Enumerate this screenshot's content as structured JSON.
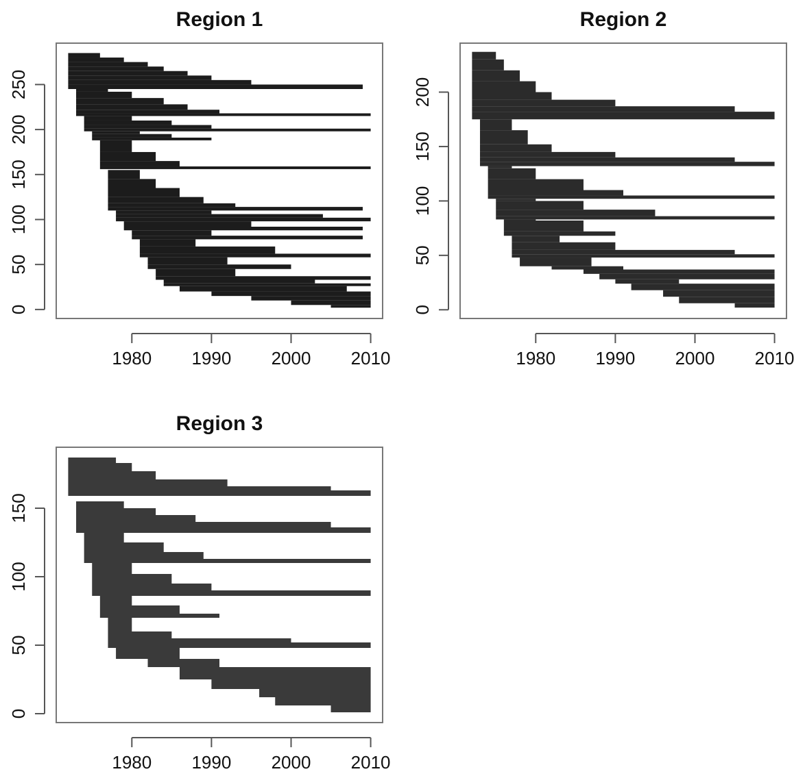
{
  "chart_data": [
    {
      "type": "block",
      "title": "Region 1",
      "color": "#1c1c1c",
      "xlim": [
        1970.5,
        2011.5
      ],
      "ylim": [
        -10,
        296
      ],
      "xticks": [
        1980,
        1990,
        2000,
        2010
      ],
      "yticks": [
        0,
        50,
        100,
        150,
        200,
        250
      ],
      "blocks": [
        {
          "y0": 245,
          "y1": 250,
          "start": 1972,
          "end": 2009
        },
        {
          "y0": 250,
          "y1": 255,
          "start": 1972,
          "end": 1995
        },
        {
          "y0": 255,
          "y1": 260,
          "start": 1972,
          "end": 1990
        },
        {
          "y0": 260,
          "y1": 265,
          "start": 1972,
          "end": 1987
        },
        {
          "y0": 265,
          "y1": 270,
          "start": 1972,
          "end": 1984
        },
        {
          "y0": 270,
          "y1": 275,
          "start": 1972,
          "end": 1982
        },
        {
          "y0": 275,
          "y1": 280,
          "start": 1972,
          "end": 1979
        },
        {
          "y0": 280,
          "y1": 285,
          "start": 1972,
          "end": 1976
        },
        {
          "y0": 215,
          "y1": 218,
          "start": 1973,
          "end": 2010
        },
        {
          "y0": 218,
          "y1": 222,
          "start": 1973,
          "end": 1991
        },
        {
          "y0": 222,
          "y1": 228,
          "start": 1973,
          "end": 1987
        },
        {
          "y0": 228,
          "y1": 235,
          "start": 1973,
          "end": 1984
        },
        {
          "y0": 235,
          "y1": 242,
          "start": 1973,
          "end": 1980
        },
        {
          "y0": 242,
          "y1": 245,
          "start": 1973,
          "end": 1977
        },
        {
          "y0": 198,
          "y1": 201,
          "start": 1974,
          "end": 2010
        },
        {
          "y0": 201,
          "y1": 205,
          "start": 1974,
          "end": 1990
        },
        {
          "y0": 205,
          "y1": 210,
          "start": 1974,
          "end": 1985
        },
        {
          "y0": 210,
          "y1": 215,
          "start": 1974,
          "end": 1980
        },
        {
          "y0": 188,
          "y1": 191,
          "start": 1975,
          "end": 1990
        },
        {
          "y0": 191,
          "y1": 195,
          "start": 1975,
          "end": 1985
        },
        {
          "y0": 195,
          "y1": 198,
          "start": 1975,
          "end": 1981
        },
        {
          "y0": 156,
          "y1": 159,
          "start": 1976,
          "end": 2010
        },
        {
          "y0": 159,
          "y1": 165,
          "start": 1976,
          "end": 1986
        },
        {
          "y0": 165,
          "y1": 175,
          "start": 1976,
          "end": 1983
        },
        {
          "y0": 175,
          "y1": 188,
          "start": 1976,
          "end": 1980
        },
        {
          "y0": 110,
          "y1": 114,
          "start": 1977,
          "end": 2009
        },
        {
          "y0": 114,
          "y1": 118,
          "start": 1977,
          "end": 1993
        },
        {
          "y0": 118,
          "y1": 125,
          "start": 1977,
          "end": 1989
        },
        {
          "y0": 125,
          "y1": 135,
          "start": 1977,
          "end": 1986
        },
        {
          "y0": 135,
          "y1": 145,
          "start": 1977,
          "end": 1983
        },
        {
          "y0": 145,
          "y1": 155,
          "start": 1977,
          "end": 1981
        },
        {
          "y0": 98,
          "y1": 102,
          "start": 1978,
          "end": 2010
        },
        {
          "y0": 102,
          "y1": 106,
          "start": 1978,
          "end": 2004
        },
        {
          "y0": 106,
          "y1": 110,
          "start": 1978,
          "end": 1990
        },
        {
          "y0": 88,
          "y1": 92,
          "start": 1979,
          "end": 2009
        },
        {
          "y0": 92,
          "y1": 98,
          "start": 1979,
          "end": 1995
        },
        {
          "y0": 78,
          "y1": 82,
          "start": 1980,
          "end": 2009
        },
        {
          "y0": 82,
          "y1": 88,
          "start": 1980,
          "end": 1990
        },
        {
          "y0": 58,
          "y1": 62,
          "start": 1981,
          "end": 2010
        },
        {
          "y0": 62,
          "y1": 70,
          "start": 1981,
          "end": 1998
        },
        {
          "y0": 70,
          "y1": 78,
          "start": 1981,
          "end": 1988
        },
        {
          "y0": 45,
          "y1": 50,
          "start": 1982,
          "end": 2000
        },
        {
          "y0": 50,
          "y1": 58,
          "start": 1982,
          "end": 1992
        },
        {
          "y0": 33,
          "y1": 37,
          "start": 1983,
          "end": 2010
        },
        {
          "y0": 37,
          "y1": 45,
          "start": 1983,
          "end": 1993
        },
        {
          "y0": 26,
          "y1": 29,
          "start": 1984,
          "end": 2010
        },
        {
          "y0": 29,
          "y1": 33,
          "start": 1984,
          "end": 2003
        },
        {
          "y0": 20,
          "y1": 26,
          "start": 1986,
          "end": 2007
        },
        {
          "y0": 15,
          "y1": 20,
          "start": 1990,
          "end": 2010
        },
        {
          "y0": 10,
          "y1": 15,
          "start": 1995,
          "end": 2010
        },
        {
          "y0": 5,
          "y1": 10,
          "start": 2000,
          "end": 2010
        },
        {
          "y0": 2,
          "y1": 5,
          "start": 2005,
          "end": 2010
        }
      ]
    },
    {
      "type": "block",
      "title": "Region 2",
      "color": "#2b2b2b",
      "xlim": [
        1970.5,
        2011.5
      ],
      "ylim": [
        -8,
        245
      ],
      "xticks": [
        1980,
        1990,
        2000,
        2010
      ],
      "yticks": [
        0,
        50,
        100,
        150,
        200
      ],
      "blocks": [
        {
          "y0": 175,
          "y1": 182,
          "start": 1972,
          "end": 2010
        },
        {
          "y0": 182,
          "y1": 187,
          "start": 1972,
          "end": 2005
        },
        {
          "y0": 187,
          "y1": 193,
          "start": 1972,
          "end": 1990
        },
        {
          "y0": 193,
          "y1": 200,
          "start": 1972,
          "end": 1982
        },
        {
          "y0": 200,
          "y1": 210,
          "start": 1972,
          "end": 1980
        },
        {
          "y0": 210,
          "y1": 220,
          "start": 1972,
          "end": 1978
        },
        {
          "y0": 220,
          "y1": 230,
          "start": 1972,
          "end": 1976
        },
        {
          "y0": 230,
          "y1": 237,
          "start": 1972,
          "end": 1975
        },
        {
          "y0": 132,
          "y1": 136,
          "start": 1973,
          "end": 2010
        },
        {
          "y0": 136,
          "y1": 140,
          "start": 1973,
          "end": 2005
        },
        {
          "y0": 140,
          "y1": 145,
          "start": 1973,
          "end": 1990
        },
        {
          "y0": 145,
          "y1": 152,
          "start": 1973,
          "end": 1982
        },
        {
          "y0": 152,
          "y1": 165,
          "start": 1973,
          "end": 1979
        },
        {
          "y0": 165,
          "y1": 175,
          "start": 1973,
          "end": 1977
        },
        {
          "y0": 102,
          "y1": 105,
          "start": 1974,
          "end": 2010
        },
        {
          "y0": 105,
          "y1": 110,
          "start": 1974,
          "end": 1991
        },
        {
          "y0": 110,
          "y1": 120,
          "start": 1974,
          "end": 1986
        },
        {
          "y0": 120,
          "y1": 130,
          "start": 1974,
          "end": 1980
        },
        {
          "y0": 130,
          "y1": 132,
          "start": 1974,
          "end": 1977
        },
        {
          "y0": 83,
          "y1": 86,
          "start": 1975,
          "end": 2010
        },
        {
          "y0": 86,
          "y1": 92,
          "start": 1975,
          "end": 1995
        },
        {
          "y0": 92,
          "y1": 100,
          "start": 1975,
          "end": 1986
        },
        {
          "y0": 100,
          "y1": 102,
          "start": 1975,
          "end": 1980
        },
        {
          "y0": 68,
          "y1": 72,
          "start": 1976,
          "end": 1990
        },
        {
          "y0": 72,
          "y1": 82,
          "start": 1976,
          "end": 1986
        },
        {
          "y0": 82,
          "y1": 83,
          "start": 1976,
          "end": 1980
        },
        {
          "y0": 48,
          "y1": 51,
          "start": 1977,
          "end": 2010
        },
        {
          "y0": 51,
          "y1": 55,
          "start": 1977,
          "end": 2005
        },
        {
          "y0": 55,
          "y1": 62,
          "start": 1977,
          "end": 1990
        },
        {
          "y0": 62,
          "y1": 68,
          "start": 1977,
          "end": 1983
        },
        {
          "y0": 40,
          "y1": 48,
          "start": 1978,
          "end": 1987
        },
        {
          "y0": 37,
          "y1": 40,
          "start": 1982,
          "end": 1991
        },
        {
          "y0": 33,
          "y1": 37,
          "start": 1986,
          "end": 2010
        },
        {
          "y0": 28,
          "y1": 33,
          "start": 1988,
          "end": 2010
        },
        {
          "y0": 24,
          "y1": 28,
          "start": 1990,
          "end": 1998
        },
        {
          "y0": 18,
          "y1": 24,
          "start": 1992,
          "end": 2010
        },
        {
          "y0": 12,
          "y1": 18,
          "start": 1996,
          "end": 2010
        },
        {
          "y0": 6,
          "y1": 12,
          "start": 1998,
          "end": 2010
        },
        {
          "y0": 2,
          "y1": 6,
          "start": 2005,
          "end": 2010
        }
      ]
    },
    {
      "type": "block",
      "title": "Region 3",
      "color": "#3a3a3a",
      "xlim": [
        1970.5,
        2011.5
      ],
      "ylim": [
        -6.5,
        194.5
      ],
      "xticks": [
        1980,
        1990,
        2000,
        2010
      ],
      "yticks": [
        0,
        50,
        100,
        150
      ],
      "blocks": [
        {
          "y0": 159,
          "y1": 163,
          "start": 1972,
          "end": 2010
        },
        {
          "y0": 163,
          "y1": 166,
          "start": 1972,
          "end": 2005
        },
        {
          "y0": 166,
          "y1": 171,
          "start": 1972,
          "end": 1992
        },
        {
          "y0": 171,
          "y1": 177,
          "start": 1972,
          "end": 1983
        },
        {
          "y0": 177,
          "y1": 183,
          "start": 1972,
          "end": 1980
        },
        {
          "y0": 183,
          "y1": 187,
          "start": 1972,
          "end": 1978
        },
        {
          "y0": 132,
          "y1": 136,
          "start": 1973,
          "end": 2010
        },
        {
          "y0": 136,
          "y1": 140,
          "start": 1973,
          "end": 2005
        },
        {
          "y0": 140,
          "y1": 145,
          "start": 1973,
          "end": 1988
        },
        {
          "y0": 145,
          "y1": 150,
          "start": 1973,
          "end": 1983
        },
        {
          "y0": 150,
          "y1": 155,
          "start": 1973,
          "end": 1979
        },
        {
          "y0": 110,
          "y1": 113,
          "start": 1974,
          "end": 2010
        },
        {
          "y0": 113,
          "y1": 118,
          "start": 1974,
          "end": 1989
        },
        {
          "y0": 118,
          "y1": 125,
          "start": 1974,
          "end": 1984
        },
        {
          "y0": 125,
          "y1": 132,
          "start": 1974,
          "end": 1979
        },
        {
          "y0": 86,
          "y1": 90,
          "start": 1975,
          "end": 2010
        },
        {
          "y0": 90,
          "y1": 95,
          "start": 1975,
          "end": 1990
        },
        {
          "y0": 95,
          "y1": 102,
          "start": 1975,
          "end": 1985
        },
        {
          "y0": 102,
          "y1": 110,
          "start": 1975,
          "end": 1980
        },
        {
          "y0": 70,
          "y1": 73,
          "start": 1976,
          "end": 1991
        },
        {
          "y0": 73,
          "y1": 79,
          "start": 1976,
          "end": 1986
        },
        {
          "y0": 79,
          "y1": 86,
          "start": 1976,
          "end": 1980
        },
        {
          "y0": 48,
          "y1": 52,
          "start": 1977,
          "end": 2010
        },
        {
          "y0": 52,
          "y1": 55,
          "start": 1977,
          "end": 2000
        },
        {
          "y0": 55,
          "y1": 60,
          "start": 1977,
          "end": 1985
        },
        {
          "y0": 60,
          "y1": 70,
          "start": 1977,
          "end": 1980
        },
        {
          "y0": 40,
          "y1": 48,
          "start": 1978,
          "end": 1986
        },
        {
          "y0": 34,
          "y1": 40,
          "start": 1982,
          "end": 1991
        },
        {
          "y0": 25,
          "y1": 34,
          "start": 1986,
          "end": 2010
        },
        {
          "y0": 18,
          "y1": 25,
          "start": 1990,
          "end": 2010
        },
        {
          "y0": 12,
          "y1": 18,
          "start": 1996,
          "end": 2010
        },
        {
          "y0": 6,
          "y1": 12,
          "start": 1998,
          "end": 2010
        },
        {
          "y0": 1,
          "y1": 6,
          "start": 2005,
          "end": 2010
        }
      ]
    }
  ]
}
